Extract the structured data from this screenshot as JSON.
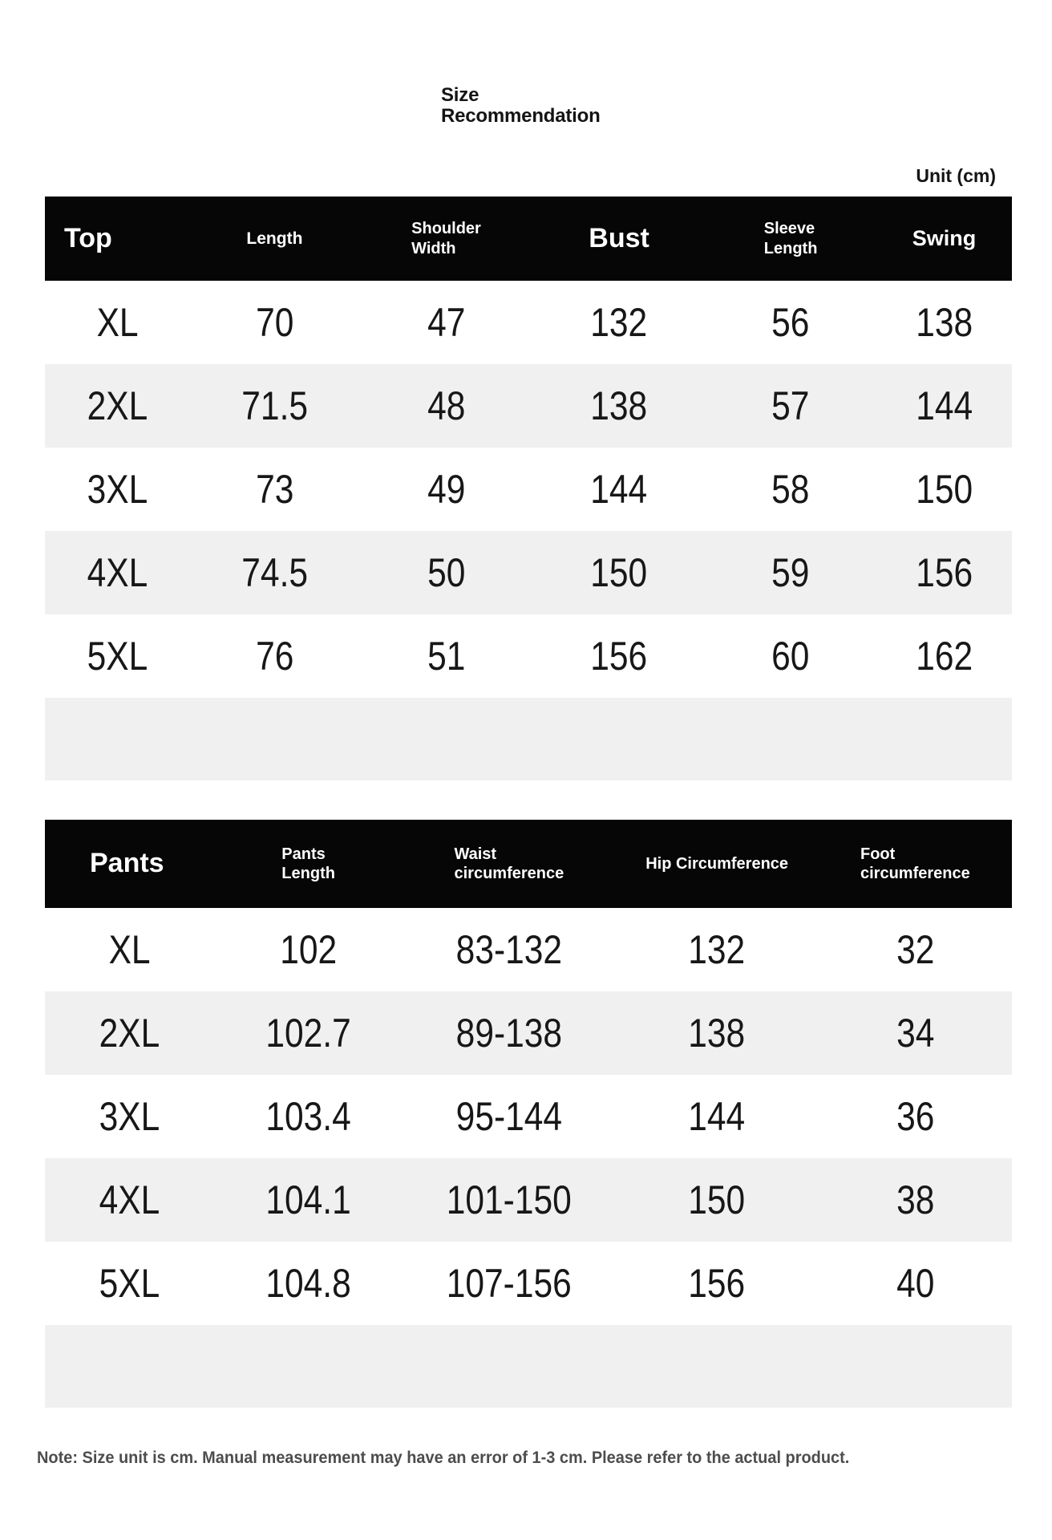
{
  "page": {
    "title_line1": "Size",
    "title_line2": "Recommendation",
    "unit_label": "Unit (cm)",
    "note": "Note: Size unit is cm. Manual measurement may have an error of 1-3 cm. Please refer to the actual product."
  },
  "colors": {
    "header_bg": "#060606",
    "header_text": "#ffffff",
    "row_alt_bg": "#f0f0f0",
    "data_text": "#171717",
    "note_text": "#4d4d4d",
    "title_text": "#141414"
  },
  "top_table": {
    "headers": [
      [
        "Top"
      ],
      [
        "Length"
      ],
      [
        "Shoulder",
        "Width"
      ],
      [
        "Bust"
      ],
      [
        "Sleeve",
        "Length"
      ],
      [
        "Swing"
      ]
    ],
    "rows": [
      [
        "XL",
        "70",
        "47",
        "132",
        "56",
        "138"
      ],
      [
        "2XL",
        "71.5",
        "48",
        "138",
        "57",
        "144"
      ],
      [
        "3XL",
        "73",
        "49",
        "144",
        "58",
        "150"
      ],
      [
        "4XL",
        "74.5",
        "50",
        "150",
        "59",
        "156"
      ],
      [
        "5XL",
        "76",
        "51",
        "156",
        "60",
        "162"
      ]
    ]
  },
  "pants_table": {
    "headers": [
      [
        "Pants"
      ],
      [
        "Pants",
        "Length"
      ],
      [
        "Waist",
        "circumference"
      ],
      [
        "Hip Circumference"
      ],
      [
        "Foot",
        "circumference"
      ]
    ],
    "rows": [
      [
        "XL",
        "102",
        "83-132",
        "132",
        "32"
      ],
      [
        "2XL",
        "102.7",
        "89-138",
        "138",
        "34"
      ],
      [
        "3XL",
        "103.4",
        "95-144",
        "144",
        "36"
      ],
      [
        "4XL",
        "104.1",
        "101-150",
        "150",
        "38"
      ],
      [
        "5XL",
        "104.8",
        "107-156",
        "156",
        "40"
      ]
    ]
  }
}
